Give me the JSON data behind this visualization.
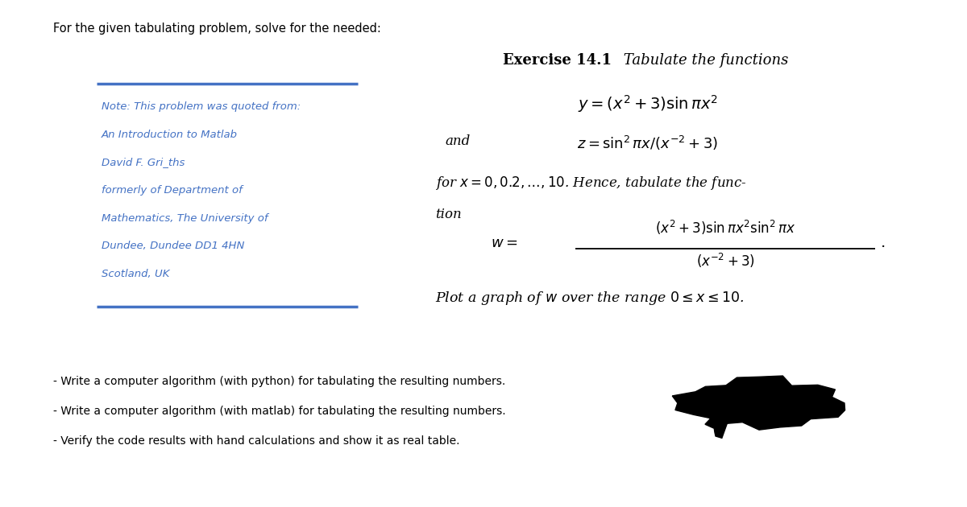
{
  "bg_color": "#ffffff",
  "header_text": "For the given tabulating problem, solve for the needed:",
  "header_fontsize": 10.5,
  "header_color": "#000000",
  "blue_line_color": "#4472C4",
  "note_lines": [
    "Note: This problem was quoted from:",
    "An Introduction to Matlab",
    "David F. Gri_ths",
    "formerly of Department of",
    "Mathematics, The University of",
    "Dundee, Dundee DD1 4HN",
    "Scotland, UK"
  ],
  "note_fontsize": 9.5,
  "note_color": "#4472C4",
  "exercise_title": "Exercise 14.1",
  "exercise_subtitle": " Tabulate the functions",
  "exercise_title_fontsize": 13,
  "eq_y": "$y = (x^2 + 3)\\sin \\pi x^2$",
  "and_text": "and",
  "eq_z": "$z = \\sin^2 \\pi x/(x^{-2} + 3)$",
  "for_text": "for $x = 0, 0.2,\\ldots, 10$. Hence, tabulate the func-",
  "tion_text": "tion",
  "eq_w_label": "$w = $",
  "eq_w_num": "$(x^2 + 3)\\sin \\pi x^2 \\sin^2 \\pi x$",
  "eq_w_den": "$(x^{-2}+3)$",
  "eq_w_period": ".",
  "plot_text": "Plot a graph of $w$ over the range $0 \\leq x \\leq 10$.",
  "bullet1": "- Write a computer algorithm (with python) for tabulating the resulting numbers.",
  "bullet2": "- Write a computer algorithm (with matlab) for tabulating the resulting numbers.",
  "bullet3": "- Verify the code results with hand calculations and show it as real table.",
  "bullet_fontsize": 10,
  "math_fontsize": 12,
  "serif_font": "DejaVu Serif"
}
